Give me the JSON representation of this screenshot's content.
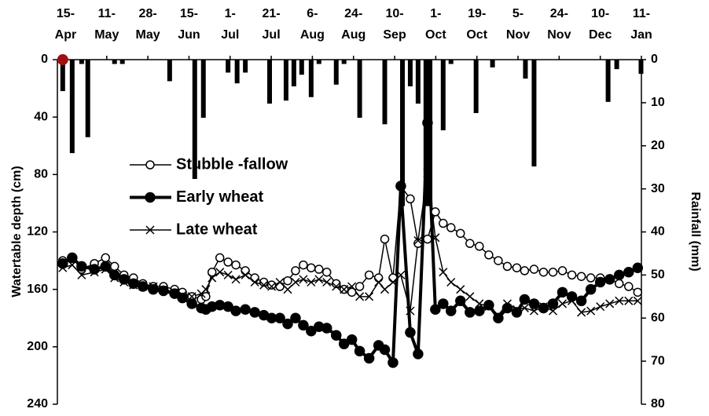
{
  "chart_data": {
    "type": "line",
    "xlim": [
      0,
      142
    ],
    "xticks": [
      {
        "value": 2,
        "label": "15-Apr"
      },
      {
        "value": 12,
        "label": "11-May"
      },
      {
        "value": 22,
        "label": "28-May"
      },
      {
        "value": 32,
        "label": "15-Jun"
      },
      {
        "value": 42,
        "label": "1-Jul"
      },
      {
        "value": 52,
        "label": "21-Jul"
      },
      {
        "value": 62,
        "label": "6-Aug"
      },
      {
        "value": 72,
        "label": "24-Aug"
      },
      {
        "value": 82,
        "label": "10-Sep"
      },
      {
        "value": 92,
        "label": "1-Oct"
      },
      {
        "value": 102,
        "label": "19-Oct"
      },
      {
        "value": 112,
        "label": "5-Nov"
      },
      {
        "value": 122,
        "label": "24-Nov"
      },
      {
        "value": 132,
        "label": "10-Dec"
      },
      {
        "value": 142,
        "label": "11-Jan"
      }
    ],
    "ylabel": "Watertable depth (cm)",
    "ylim": [
      0,
      240
    ],
    "yticks": [
      0,
      40,
      80,
      120,
      160,
      200,
      240
    ],
    "y_inverted": true,
    "y2label": "Rainfall (mm)",
    "y2lim": [
      0,
      80
    ],
    "y2ticks": [
      0,
      10,
      20,
      30,
      40,
      50,
      60,
      70,
      80
    ],
    "y2_inverted": true,
    "legend": "left",
    "x": [
      1.3,
      3.6,
      5.9,
      9.0,
      11.7,
      13.9,
      16.2,
      18.5,
      20.8,
      23.3,
      25.8,
      28.5,
      30.4,
      32.7,
      35.0,
      36.1,
      37.6,
      39.5,
      41.5,
      43.4,
      45.7,
      48.0,
      50.2,
      52.1,
      54.1,
      56.0,
      57.9,
      59.8,
      61.7,
      63.6,
      65.5,
      67.8,
      69.7,
      71.6,
      73.5,
      75.8,
      78.1,
      79.6,
      81.6,
      83.5,
      85.8,
      87.7,
      90.0,
      91.9,
      93.8,
      95.7,
      98.0,
      100.3,
      102.6,
      104.9,
      107.2,
      109.4,
      111.7,
      113.6,
      115.9,
      118.2,
      120.5,
      122.8,
      125.1,
      127.4,
      129.7,
      132.0,
      134.3,
      136.6,
      138.9,
      141.1
    ],
    "series": [
      {
        "name": "Stubble -fallow",
        "color": "#000000",
        "marker": "open-circle",
        "line_width": 1.5,
        "values": [
          140,
          138,
          146,
          142,
          138,
          144,
          150,
          152,
          156,
          158,
          158,
          160,
          162,
          165,
          167,
          165,
          148,
          138,
          141,
          143,
          147,
          152,
          155,
          157,
          158,
          154,
          147,
          143,
          145,
          146,
          148,
          156,
          160,
          162,
          158,
          150,
          152,
          125,
          152,
          88,
          97,
          128,
          125,
          106,
          114,
          117,
          121,
          128,
          130,
          136,
          140,
          144,
          145,
          147,
          146,
          148,
          148,
          147,
          150,
          151,
          152,
          152,
          153,
          156,
          158,
          162
        ]
      },
      {
        "name": "Early wheat",
        "color": "#000000",
        "marker": "filled-circle",
        "line_width": 4,
        "values": [
          142,
          138,
          144,
          146,
          144,
          150,
          153,
          156,
          158,
          160,
          161,
          163,
          166,
          170,
          173,
          174,
          172,
          171,
          172,
          175,
          174,
          176,
          178,
          180,
          180,
          184,
          180,
          185,
          189,
          186,
          187,
          192,
          198,
          195,
          203,
          208,
          199,
          202,
          211,
          88,
          190,
          205,
          44,
          174,
          170,
          175,
          168,
          176,
          175,
          171,
          180,
          173,
          176,
          167,
          170,
          173,
          170,
          162,
          165,
          168,
          160,
          155,
          153,
          150,
          148,
          145
        ]
      },
      {
        "name": "Late wheat",
        "color": "#000000",
        "marker": "x",
        "line_width": 1.5,
        "values": [
          145,
          143,
          150,
          148,
          146,
          152,
          155,
          157,
          158,
          158,
          160,
          162,
          164,
          165,
          163,
          160,
          152,
          148,
          150,
          153,
          150,
          155,
          157,
          158,
          155,
          160,
          155,
          153,
          155,
          153,
          155,
          158,
          160,
          158,
          165,
          165,
          155,
          160,
          155,
          150,
          175,
          126,
          79,
          124,
          148,
          155,
          160,
          165,
          170,
          172,
          178,
          170,
          174,
          173,
          175,
          172,
          175,
          170,
          168,
          176,
          175,
          172,
          170,
          168,
          168,
          168
        ]
      }
    ],
    "rainfall": {
      "type": "bar",
      "axis": "y2",
      "color": "#000000",
      "x": [
        1.3,
        3.6,
        5.9,
        7.4,
        13.9,
        15.8,
        27.3,
        33.4,
        35.5,
        41.5,
        43.7,
        45.7,
        51.6,
        55.6,
        57.5,
        59.4,
        61.7,
        63.6,
        67.8,
        69.7,
        73.5,
        79.6,
        83.9,
        85.8,
        87.7,
        89.6,
        90.6,
        93.8,
        95.7,
        101.8,
        105.8,
        113.8,
        115.9,
        133.9,
        136.0,
        141.9
      ],
      "values": [
        7.3,
        21.7,
        1,
        18,
        1,
        1,
        5,
        27.7,
        13.5,
        3,
        5.5,
        3,
        10.2,
        9.5,
        6.2,
        3.5,
        8.7,
        1,
        5.8,
        1,
        13.5,
        15,
        34,
        6.2,
        10.2,
        34,
        34,
        16.4,
        1,
        12.4,
        1.8,
        4.4,
        24.8,
        9.8,
        2.2,
        3.3
      ]
    },
    "highlight": {
      "x": 1.3,
      "value": 0,
      "color": "#a01010"
    }
  }
}
